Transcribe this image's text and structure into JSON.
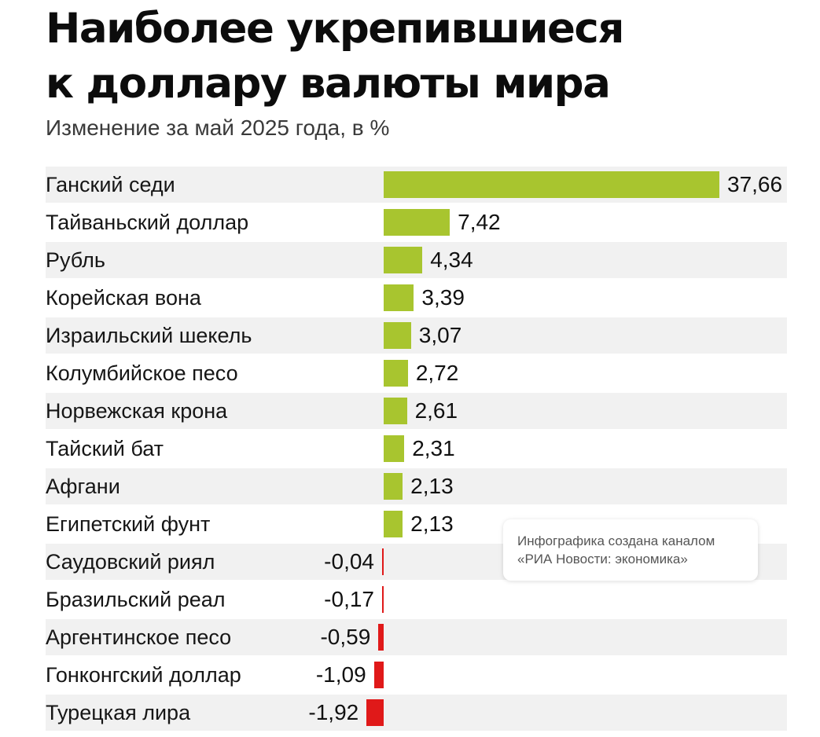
{
  "header": {
    "title_line1": "Наиболее укрепившиеся",
    "title_line2": "к доллару валюты мира",
    "subtitle": "Изменение за май 2025 года, в %"
  },
  "note": {
    "line1": "Инфографика создана каналом",
    "line2": "«РИА Новости: экономика»"
  },
  "colors": {
    "positive": "#a8c52f",
    "negative": "#e01919",
    "stripe": "#f1f1f1"
  },
  "chart_data": {
    "type": "bar",
    "orientation": "horizontal",
    "title": "Наиболее укрепившиеся к доллару валюты мира",
    "subtitle": "Изменение за май 2025 года, в %",
    "categories": [
      "Ганский седи",
      "Тайваньский доллар",
      "Рубль",
      "Корейская вона",
      "Израильский шекель",
      "Колумбийское песо",
      "Норвежская крона",
      "Тайский бат",
      "Афгани",
      "Египетский фунт",
      "Саудовский риял",
      "Бразильский реал",
      "Аргентинское песо",
      "Гонконгский доллар",
      "Турецкая лира"
    ],
    "values": [
      37.66,
      7.42,
      4.34,
      3.39,
      3.07,
      2.72,
      2.61,
      2.31,
      2.13,
      2.13,
      -0.04,
      -0.17,
      -0.59,
      -1.09,
      -1.92
    ],
    "value_labels": [
      "37,66",
      "7,42",
      "4,34",
      "3,39",
      "3,07",
      "2,72",
      "2,61",
      "2,31",
      "2,13",
      "2,13",
      "-0,04",
      "-0,17",
      "-0,59",
      "-1,09",
      "-1,92"
    ],
    "xlabel": "",
    "ylabel": "",
    "grid": false,
    "legend": "none"
  }
}
